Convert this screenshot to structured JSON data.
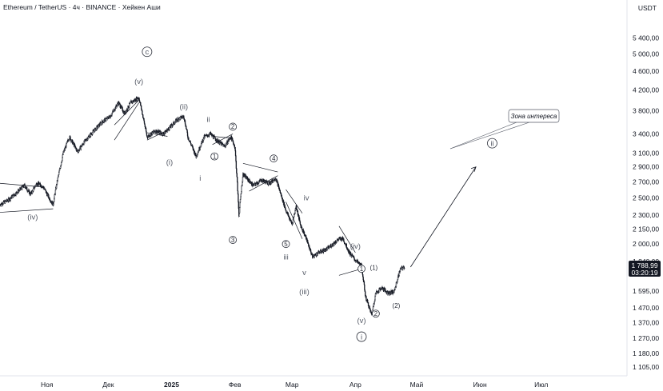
{
  "header": {
    "title": "Ethereum / TetherUS · 4ч · BINANCE · Хейкен Аши",
    "unit": "USDT"
  },
  "chart_data": {
    "type": "candlestick",
    "title": "Ethereum / TetherUS · 4ч · BINANCE · Хейкен Аши",
    "ylabel": "USDT",
    "y_scale": "log",
    "ylim": [
      1060,
      6000
    ],
    "y_ticks": [
      "5 400,00",
      "5 000,00",
      "4 600,00",
      "4 200,00",
      "3 800,00",
      "3 400,00",
      "3 100,00",
      "2 900,00",
      "2 700,00",
      "2 500,00",
      "2 300,00",
      "2 150,00",
      "2 000,00",
      "1 840,00",
      "1 595,00",
      "1 470,00",
      "1 370,00",
      "1 270,00",
      "1 180,00",
      "1 105,00"
    ],
    "y_tick_values": [
      5400,
      5000,
      4600,
      4200,
      3800,
      3400,
      3100,
      2900,
      2700,
      2500,
      2300,
      2150,
      2000,
      1840,
      1595,
      1470,
      1370,
      1270,
      1180,
      1105
    ],
    "x_ticks": [
      "Ноя",
      "Дек",
      "2025",
      "Фев",
      "Мар",
      "Апр",
      "Май",
      "Июн",
      "Июл"
    ],
    "x_tick_dates": [
      "2024-11-01",
      "2024-12-01",
      "2025-01-01",
      "2025-02-01",
      "2025-03-01",
      "2025-04-01",
      "2025-05-01",
      "2025-06-01",
      "2025-07-01"
    ],
    "x_range": [
      "2024-10-09",
      "2025-08-12"
    ],
    "price_path": [
      [
        "2024-10-09",
        2420
      ],
      [
        "2024-10-13",
        2470
      ],
      [
        "2024-10-17",
        2560
      ],
      [
        "2024-10-21",
        2650
      ],
      [
        "2024-10-24",
        2540
      ],
      [
        "2024-10-27",
        2680
      ],
      [
        "2024-10-30",
        2640
      ],
      [
        "2024-11-02",
        2500
      ],
      [
        "2024-11-04",
        2420
      ],
      [
        "2024-11-06",
        2700
      ],
      [
        "2024-11-09",
        3100
      ],
      [
        "2024-11-12",
        3350
      ],
      [
        "2024-11-16",
        3120
      ],
      [
        "2024-11-20",
        3300
      ],
      [
        "2024-11-24",
        3450
      ],
      [
        "2024-11-28",
        3600
      ],
      [
        "2024-12-02",
        3700
      ],
      [
        "2024-12-06",
        3950
      ],
      [
        "2024-12-09",
        3750
      ],
      [
        "2024-12-12",
        3950
      ],
      [
        "2024-12-16",
        4050
      ],
      [
        "2024-12-18",
        3700
      ],
      [
        "2024-12-20",
        3350
      ],
      [
        "2024-12-24",
        3450
      ],
      [
        "2024-12-28",
        3400
      ],
      [
        "2024-12-31",
        3500
      ],
      [
        "2025-01-04",
        3650
      ],
      [
        "2025-01-07",
        3700
      ],
      [
        "2025-01-09",
        3350
      ],
      [
        "2025-01-13",
        3050
      ],
      [
        "2025-01-17",
        3350
      ],
      [
        "2025-01-20",
        3400
      ],
      [
        "2025-01-23",
        3300
      ],
      [
        "2025-01-27",
        3200
      ],
      [
        "2025-01-30",
        3350
      ],
      [
        "2025-02-01",
        3200
      ],
      [
        "2025-02-03",
        2300
      ],
      [
        "2025-02-05",
        2800
      ],
      [
        "2025-02-10",
        2650
      ],
      [
        "2025-02-14",
        2720
      ],
      [
        "2025-02-18",
        2680
      ],
      [
        "2025-02-21",
        2750
      ],
      [
        "2025-02-24",
        2500
      ],
      [
        "2025-02-26",
        2350
      ],
      [
        "2025-03-01",
        2200
      ],
      [
        "2025-03-03",
        2400
      ],
      [
        "2025-03-05",
        2200
      ],
      [
        "2025-03-08",
        2050
      ],
      [
        "2025-03-11",
        1880
      ],
      [
        "2025-03-14",
        1920
      ],
      [
        "2025-03-18",
        1950
      ],
      [
        "2025-03-21",
        2000
      ],
      [
        "2025-03-24",
        2050
      ],
      [
        "2025-03-26",
        2050
      ],
      [
        "2025-03-29",
        1920
      ],
      [
        "2025-04-01",
        1850
      ],
      [
        "2025-04-04",
        1800
      ],
      [
        "2025-04-06",
        1550
      ],
      [
        "2025-04-09",
        1420
      ],
      [
        "2025-04-11",
        1580
      ],
      [
        "2025-04-14",
        1620
      ],
      [
        "2025-04-17",
        1580
      ],
      [
        "2025-04-20",
        1590
      ],
      [
        "2025-04-23",
        1770
      ],
      [
        "2025-04-25",
        1790
      ]
    ],
    "last_price": "1 788,99",
    "countdown": "03:20:19",
    "wave_labels": [
      {
        "text": "c",
        "date": "2024-12-20",
        "price": 5050,
        "style": "circle"
      },
      {
        "text": "(v)",
        "date": "2024-12-16",
        "price": 4380,
        "style": "plain"
      },
      {
        "text": "(ii)",
        "date": "2025-01-07",
        "price": 3880,
        "style": "plain"
      },
      {
        "text": "ii",
        "date": "2025-01-19",
        "price": 3650,
        "style": "plain"
      },
      {
        "text": "2",
        "date": "2025-01-31",
        "price": 3520,
        "style": "circle-small"
      },
      {
        "text": "(i)",
        "date": "2024-12-31",
        "price": 2970,
        "style": "plain"
      },
      {
        "text": "1",
        "date": "2025-01-22",
        "price": 3050,
        "style": "circle-small"
      },
      {
        "text": "i",
        "date": "2025-01-15",
        "price": 2750,
        "style": "plain"
      },
      {
        "text": "4",
        "date": "2025-02-20",
        "price": 3020,
        "style": "circle-small"
      },
      {
        "text": "(iv)",
        "date": "2024-10-25",
        "price": 2280,
        "style": "plain"
      },
      {
        "text": "3",
        "date": "2025-01-31",
        "price": 2040,
        "style": "circle-small"
      },
      {
        "text": "iv",
        "date": "2025-03-08",
        "price": 2500,
        "style": "plain"
      },
      {
        "text": "5",
        "date": "2025-02-26",
        "price": 2000,
        "style": "circle-small"
      },
      {
        "text": "iii",
        "date": "2025-02-26",
        "price": 1880,
        "style": "plain"
      },
      {
        "text": "v",
        "date": "2025-03-07",
        "price": 1745,
        "style": "plain"
      },
      {
        "text": "(iii)",
        "date": "2025-03-07",
        "price": 1590,
        "style": "plain"
      },
      {
        "text": "(iv)",
        "date": "2025-04-01",
        "price": 1980,
        "style": "plain"
      },
      {
        "text": "1",
        "date": "2025-04-04",
        "price": 1775,
        "style": "circle-small"
      },
      {
        "text": "(1)",
        "date": "2025-04-10",
        "price": 1785,
        "style": "plain-small"
      },
      {
        "text": "(2)",
        "date": "2025-04-21",
        "price": 1487,
        "style": "plain-small"
      },
      {
        "text": "2",
        "date": "2025-04-11",
        "price": 1430,
        "style": "circle-small"
      },
      {
        "text": "(v)",
        "date": "2025-04-04",
        "price": 1385,
        "style": "plain"
      },
      {
        "text": "i",
        "date": "2025-04-04",
        "price": 1280,
        "style": "circle"
      },
      {
        "text": "ii",
        "date": "2025-06-07",
        "price": 3250,
        "style": "circle"
      }
    ],
    "annotation": "Зона интереса"
  }
}
